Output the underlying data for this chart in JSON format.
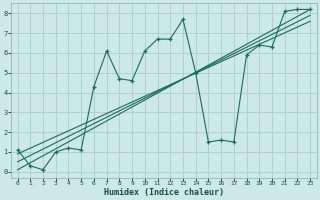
{
  "xlabel": "Humidex (Indice chaleur)",
  "bg_color": "#cce8e8",
  "grid_color": "#aacccc",
  "line_color": "#1a6b5a",
  "xlim": [
    -0.5,
    23.5
  ],
  "ylim": [
    -0.3,
    8.5
  ],
  "xticks": [
    0,
    1,
    2,
    3,
    4,
    5,
    6,
    7,
    8,
    9,
    10,
    11,
    12,
    13,
    14,
    15,
    16,
    17,
    18,
    19,
    20,
    21,
    22,
    23
  ],
  "yticks": [
    0,
    1,
    2,
    3,
    4,
    5,
    6,
    7,
    8
  ],
  "series1_x": [
    0,
    1,
    2,
    3,
    4,
    5,
    6,
    7,
    8,
    9,
    10,
    11,
    12,
    13,
    14,
    15,
    16,
    17,
    18,
    19,
    20,
    21,
    22,
    23
  ],
  "series1_y": [
    1.1,
    0.3,
    0.1,
    1.0,
    1.2,
    1.1,
    4.3,
    6.1,
    4.7,
    4.6,
    6.1,
    6.7,
    6.7,
    7.7,
    5.0,
    1.5,
    1.6,
    1.5,
    5.9,
    6.4,
    6.3,
    8.1,
    8.2,
    8.2
  ],
  "series2_x": [
    0,
    23
  ],
  "series2_y": [
    0.1,
    8.2
  ],
  "series3_x": [
    0,
    23
  ],
  "series3_y": [
    0.5,
    7.9
  ],
  "series4_x": [
    0,
    23
  ],
  "series4_y": [
    0.9,
    7.6
  ]
}
